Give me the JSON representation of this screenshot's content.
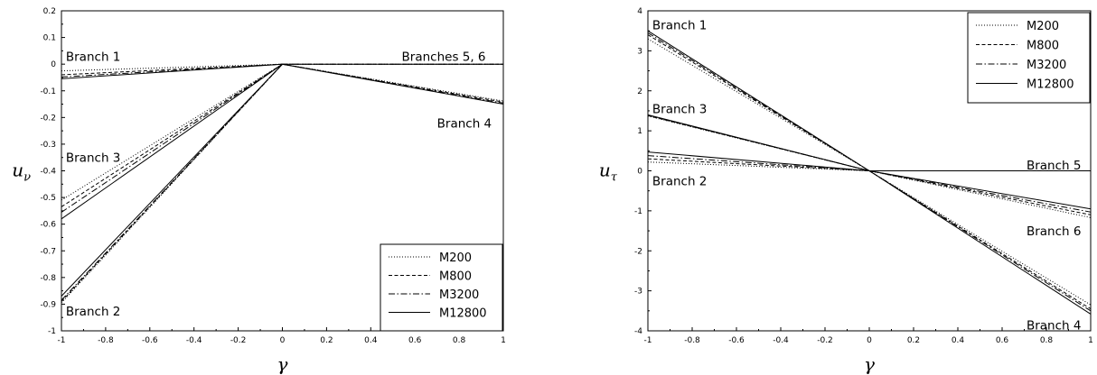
{
  "chart_data": [
    {
      "type": "line",
      "xlabel": "γ",
      "ylabel": {
        "base": "u",
        "sub": "ν"
      },
      "xlim": [
        -1,
        1
      ],
      "ylim": [
        -1,
        0.2
      ],
      "xticks": [
        "-1",
        "-0.8",
        "-0.6",
        "-0.4",
        "-0.2",
        "0",
        "0.2",
        "0.4",
        "0.6",
        "0.8",
        "1"
      ],
      "yticks": [
        "0.2",
        "0.1",
        "0",
        "-0.1",
        "-0.2",
        "-0.3",
        "-0.4",
        "-0.5",
        "-0.6",
        "-0.7",
        "-0.8",
        "-0.9",
        "-1"
      ],
      "legend_position": "bottom-right",
      "series": [
        {
          "name": "M200",
          "style": "dotted",
          "branches": [
            {
              "x": [
                -1,
                0,
                1
              ],
              "y": [
                -0.025,
                0,
                0
              ]
            },
            {
              "x": [
                0,
                1
              ],
              "y": [
                0,
                -0.138
              ]
            },
            {
              "x": [
                -1,
                0
              ],
              "y": [
                -0.51,
                0
              ]
            },
            {
              "x": [
                -1,
                0
              ],
              "y": [
                -0.895,
                0
              ]
            }
          ]
        },
        {
          "name": "M800",
          "style": "dashed",
          "branches": [
            {
              "x": [
                -1,
                0,
                1
              ],
              "y": [
                -0.04,
                0,
                0
              ]
            },
            {
              "x": [
                0,
                1
              ],
              "y": [
                0,
                -0.142
              ]
            },
            {
              "x": [
                -1,
                0
              ],
              "y": [
                -0.535,
                0
              ]
            },
            {
              "x": [
                -1,
                0
              ],
              "y": [
                -0.89,
                0
              ]
            }
          ]
        },
        {
          "name": "M3200",
          "style": "dashdot",
          "branches": [
            {
              "x": [
                -1,
                0,
                1
              ],
              "y": [
                -0.048,
                0,
                0
              ]
            },
            {
              "x": [
                0,
                1
              ],
              "y": [
                0,
                -0.146
              ]
            },
            {
              "x": [
                -1,
                0
              ],
              "y": [
                -0.555,
                0
              ]
            },
            {
              "x": [
                -1,
                0
              ],
              "y": [
                -0.885,
                0
              ]
            }
          ]
        },
        {
          "name": "M12800",
          "style": "solid",
          "branches": [
            {
              "x": [
                -1,
                0,
                1
              ],
              "y": [
                -0.055,
                0,
                0
              ]
            },
            {
              "x": [
                0,
                1
              ],
              "y": [
                0,
                -0.15
              ]
            },
            {
              "x": [
                -1,
                0
              ],
              "y": [
                -0.58,
                0
              ]
            },
            {
              "x": [
                -1,
                0
              ],
              "y": [
                -0.87,
                0
              ]
            }
          ]
        }
      ],
      "annotations": [
        {
          "text": "Branch 1",
          "x": -0.98,
          "y": 0.03
        },
        {
          "text": "Branches 5, 6",
          "x": 0.54,
          "y": 0.03
        },
        {
          "text": "Branch 4",
          "x": 0.7,
          "y": -0.22
        },
        {
          "text": "Branch 3",
          "x": -0.98,
          "y": -0.35
        },
        {
          "text": "Branch 2",
          "x": -0.98,
          "y": -0.925
        }
      ]
    },
    {
      "type": "line",
      "xlabel": "γ",
      "ylabel": {
        "base": "u",
        "sub": "τ"
      },
      "xlim": [
        -1,
        1
      ],
      "ylim": [
        -4,
        4
      ],
      "xticks": [
        "-1",
        "-0.8",
        "-0.6",
        "-0.4",
        "-0.2",
        "0",
        "0.2",
        "0.4",
        "0.6",
        "0.8",
        "1"
      ],
      "yticks": [
        "4",
        "3",
        "2",
        "1",
        "0",
        "-1",
        "-2",
        "-3",
        "-4"
      ],
      "legend_position": "top-right",
      "series": [
        {
          "name": "M200",
          "style": "dotted",
          "branches": [
            {
              "x": [
                -1,
                0
              ],
              "y": [
                3.3,
                0
              ]
            },
            {
              "x": [
                -1,
                0
              ],
              "y": [
                1.37,
                0
              ]
            },
            {
              "x": [
                -1,
                0
              ],
              "y": [
                0.22,
                0
              ]
            },
            {
              "x": [
                0,
                1
              ],
              "y": [
                0,
                0
              ]
            },
            {
              "x": [
                0,
                1
              ],
              "y": [
                0,
                -1.17
              ]
            },
            {
              "x": [
                0,
                1
              ],
              "y": [
                0,
                -3.35
              ]
            }
          ]
        },
        {
          "name": "M800",
          "style": "dashed",
          "branches": [
            {
              "x": [
                -1,
                0
              ],
              "y": [
                3.4,
                0
              ]
            },
            {
              "x": [
                -1,
                0
              ],
              "y": [
                1.38,
                0
              ]
            },
            {
              "x": [
                -1,
                0
              ],
              "y": [
                0.3,
                0
              ]
            },
            {
              "x": [
                0,
                1
              ],
              "y": [
                0,
                0
              ]
            },
            {
              "x": [
                0,
                1
              ],
              "y": [
                0,
                -1.1
              ]
            },
            {
              "x": [
                0,
                1
              ],
              "y": [
                0,
                -3.45
              ]
            }
          ]
        },
        {
          "name": "M3200",
          "style": "dashdot",
          "branches": [
            {
              "x": [
                -1,
                0
              ],
              "y": [
                3.45,
                0
              ]
            },
            {
              "x": [
                -1,
                0
              ],
              "y": [
                1.39,
                0
              ]
            },
            {
              "x": [
                -1,
                0
              ],
              "y": [
                0.38,
                0
              ]
            },
            {
              "x": [
                0,
                1
              ],
              "y": [
                0,
                0
              ]
            },
            {
              "x": [
                0,
                1
              ],
              "y": [
                0,
                -1.03
              ]
            },
            {
              "x": [
                0,
                1
              ],
              "y": [
                0,
                -3.5
              ]
            }
          ]
        },
        {
          "name": "M12800",
          "style": "solid",
          "branches": [
            {
              "x": [
                -1,
                0
              ],
              "y": [
                3.5,
                0
              ]
            },
            {
              "x": [
                -1,
                0
              ],
              "y": [
                1.4,
                0
              ]
            },
            {
              "x": [
                -1,
                0
              ],
              "y": [
                0.47,
                0
              ]
            },
            {
              "x": [
                0,
                1
              ],
              "y": [
                0,
                0
              ]
            },
            {
              "x": [
                0,
                1
              ],
              "y": [
                0,
                -0.95
              ]
            },
            {
              "x": [
                0,
                1
              ],
              "y": [
                0,
                -3.58
              ]
            }
          ]
        }
      ],
      "annotations": [
        {
          "text": "Branch 1",
          "x": -0.98,
          "y": 3.65
        },
        {
          "text": "Branch 3",
          "x": -0.98,
          "y": 1.55
        },
        {
          "text": "Branch 2",
          "x": -0.98,
          "y": -0.25
        },
        {
          "text": "Branch 5",
          "x": 0.71,
          "y": 0.15
        },
        {
          "text": "Branch 6",
          "x": 0.71,
          "y": -1.5
        },
        {
          "text": "Branch 4",
          "x": 0.71,
          "y": -3.85
        }
      ]
    }
  ]
}
